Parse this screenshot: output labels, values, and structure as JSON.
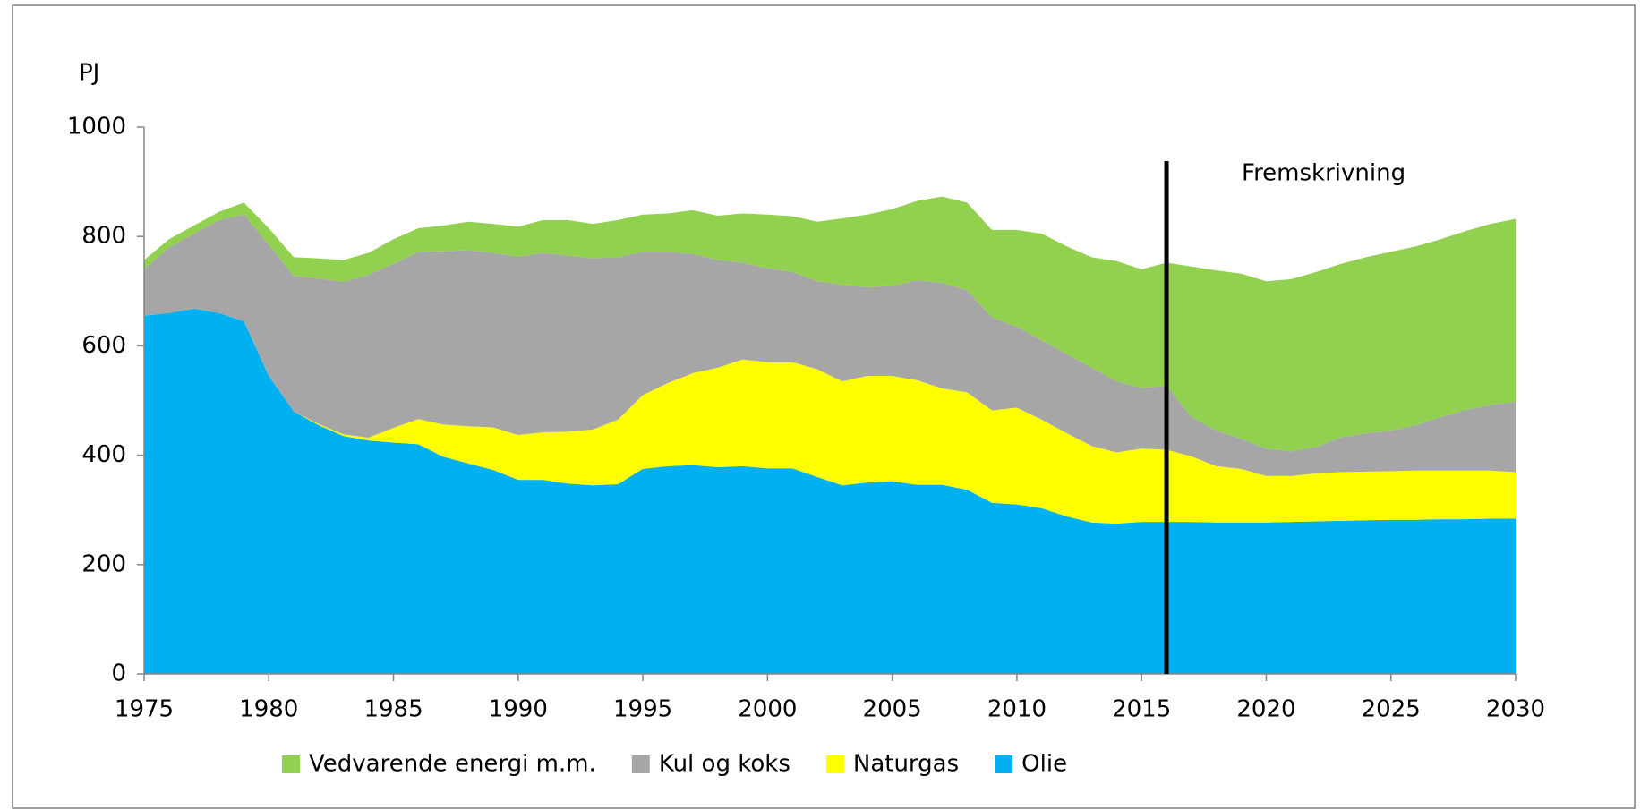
{
  "chart_data": {
    "type": "stacked_area",
    "y_axis_label": "PJ",
    "annotation": {
      "text": "Fremskrivning",
      "x": 2016
    },
    "x": [
      1975,
      1976,
      1977,
      1978,
      1979,
      1980,
      1981,
      1982,
      1983,
      1984,
      1985,
      1986,
      1987,
      1988,
      1989,
      1990,
      1991,
      1992,
      1993,
      1994,
      1995,
      1996,
      1997,
      1998,
      1999,
      2000,
      2001,
      2002,
      2003,
      2004,
      2005,
      2006,
      2007,
      2008,
      2009,
      2010,
      2011,
      2012,
      2013,
      2014,
      2015,
      2016,
      2017,
      2018,
      2019,
      2020,
      2021,
      2022,
      2023,
      2024,
      2025,
      2026,
      2027,
      2028,
      2029,
      2030
    ],
    "series": [
      {
        "name": "Vedvarende energi m.m.",
        "color": "#92d050",
        "values": [
          17,
          15,
          15,
          15,
          22,
          30,
          34,
          37,
          40,
          40,
          45,
          43,
          47,
          52,
          53,
          55,
          60,
          65,
          63,
          68,
          68,
          70,
          80,
          81,
          90,
          98,
          102,
          109,
          121,
          133,
          140,
          145,
          158,
          160,
          160,
          177,
          195,
          197,
          202,
          220,
          217,
          225,
          275,
          293,
          302,
          306,
          315,
          320,
          317,
          322,
          327,
          327,
          325,
          327,
          331,
          334
        ]
      },
      {
        "name": "Kul og koks",
        "color": "#a6a6a6",
        "values": [
          85,
          120,
          137,
          170,
          195,
          240,
          248,
          266,
          279,
          298,
          300,
          306,
          317,
          322,
          319,
          326,
          328,
          322,
          313,
          297,
          262,
          240,
          218,
          197,
          177,
          172,
          165,
          161,
          177,
          162,
          165,
          183,
          193,
          187,
          170,
          148,
          145,
          145,
          143,
          130,
          111,
          117,
          72,
          65,
          55,
          50,
          45,
          48,
          64,
          70,
          74,
          83,
          98,
          111,
          120,
          129
        ]
      },
      {
        "name": "Naturgas",
        "color": "#ffff00",
        "values": [
          0,
          0,
          0,
          0,
          0,
          0,
          0,
          2,
          3,
          5,
          27,
          46,
          59,
          68,
          78,
          82,
          87,
          95,
          102,
          118,
          135,
          152,
          168,
          182,
          195,
          194,
          194,
          197,
          190,
          195,
          193,
          191,
          176,
          178,
          169,
          177,
          162,
          152,
          140,
          130,
          134,
          132,
          120,
          103,
          98,
          85,
          84,
          88,
          89,
          89,
          89,
          90,
          89,
          89,
          88,
          85
        ]
      },
      {
        "name": "Olie",
        "color": "#00b0f0",
        "values": [
          655,
          660,
          668,
          660,
          645,
          545,
          480,
          455,
          435,
          427,
          423,
          420,
          397,
          385,
          373,
          355,
          355,
          348,
          345,
          347,
          375,
          380,
          382,
          378,
          380,
          376,
          376,
          360,
          345,
          350,
          352,
          346,
          346,
          337,
          313,
          310,
          303,
          288,
          277,
          275,
          278,
          278,
          278,
          277,
          277,
          277,
          278,
          279,
          280,
          281,
          282,
          282,
          283,
          283,
          284,
          284
        ]
      }
    ],
    "xlim": [
      1975,
      2030
    ],
    "xticks": [
      1975,
      1980,
      1985,
      1990,
      1995,
      2000,
      2005,
      2010,
      2015,
      2020,
      2025,
      2030
    ],
    "ylim": [
      0,
      1000
    ],
    "yticks": [
      0,
      200,
      400,
      600,
      800,
      1000
    ],
    "grid": false,
    "legend": "bottom"
  }
}
